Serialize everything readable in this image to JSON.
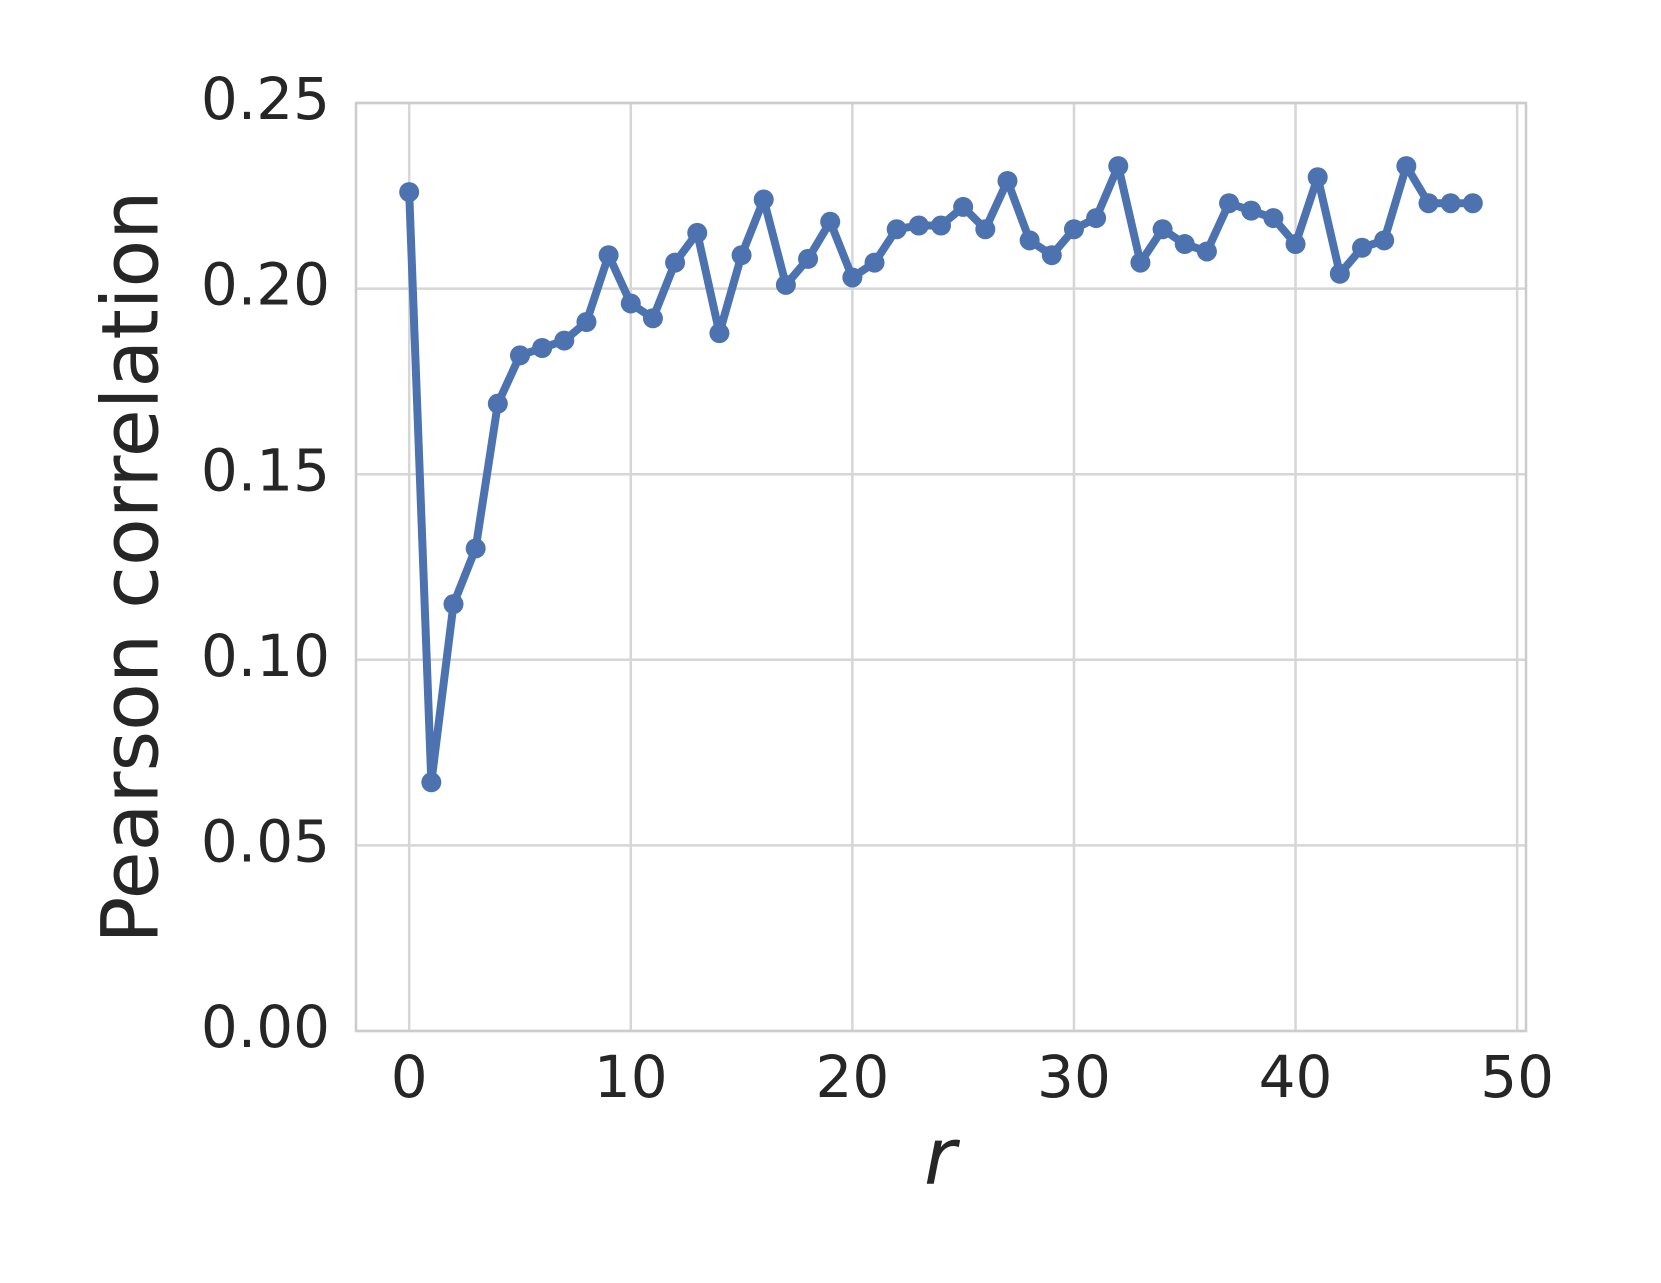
{
  "chart_data": {
    "type": "line",
    "x_label": "r",
    "y_label": "Pearson correlation",
    "x": [
      0,
      1,
      2,
      3,
      4,
      5,
      6,
      7,
      8,
      9,
      10,
      11,
      12,
      13,
      14,
      15,
      16,
      17,
      18,
      19,
      20,
      21,
      22,
      23,
      24,
      25,
      26,
      27,
      28,
      29,
      30,
      31,
      32,
      33,
      34,
      35,
      36,
      37,
      38,
      39,
      40,
      41,
      42,
      43,
      44,
      45,
      46,
      47,
      48
    ],
    "series": [
      {
        "color": "#4c72b0",
        "values": [
          0.226,
          0.067,
          0.115,
          0.13,
          0.169,
          0.182,
          0.184,
          0.186,
          0.191,
          0.209,
          0.196,
          0.192,
          0.207,
          0.215,
          0.188,
          0.209,
          0.224,
          0.201,
          0.208,
          0.218,
          0.203,
          0.207,
          0.216,
          0.217,
          0.217,
          0.222,
          0.216,
          0.229,
          0.213,
          0.209,
          0.216,
          0.219,
          0.233,
          0.207,
          0.216,
          0.212,
          0.21,
          0.223,
          0.221,
          0.219,
          0.212,
          0.23,
          0.204,
          0.211,
          0.213,
          0.233,
          0.223,
          0.223,
          0.223
        ]
      }
    ],
    "xlim": [
      -2.4,
      50.4
    ],
    "ylim": [
      0,
      0.25
    ],
    "xticks": [
      0,
      10,
      20,
      30,
      40,
      50
    ],
    "yticks": [
      {
        "value": 0,
        "label": "0.00"
      },
      {
        "value": 0.05,
        "label": "0.05"
      },
      {
        "value": 0.1,
        "label": "0.10"
      },
      {
        "value": 0.15,
        "label": "0.15"
      },
      {
        "value": 0.2,
        "label": "0.20"
      },
      {
        "value": 0.25,
        "label": "0.25"
      }
    ],
    "grid": true,
    "markers": true
  }
}
